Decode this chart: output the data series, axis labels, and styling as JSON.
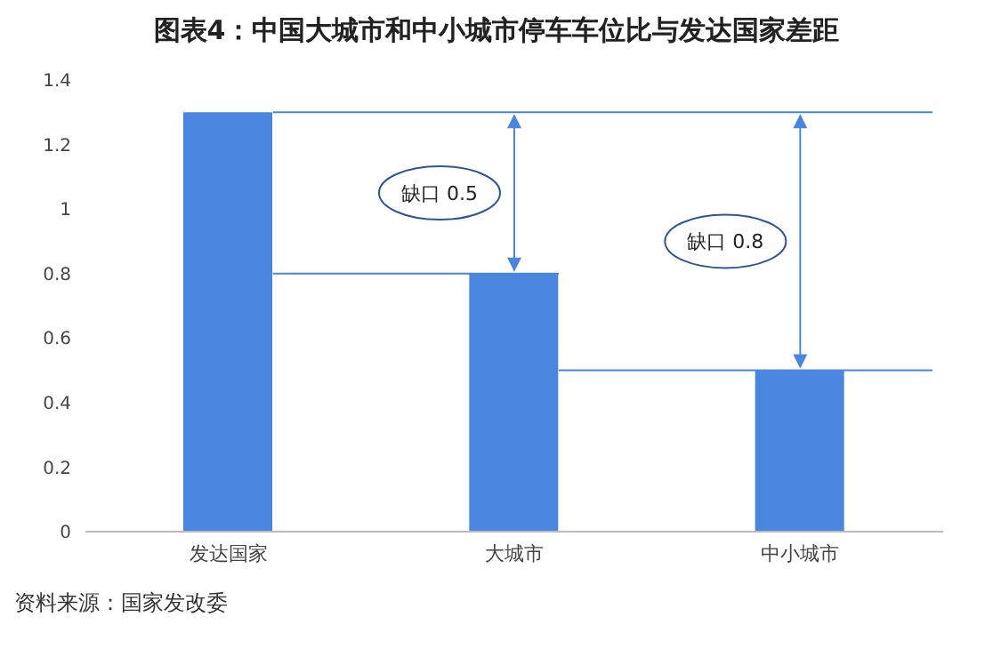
{
  "chart_data": {
    "type": "bar",
    "title": "图表4：中国大城市和中小城市停车车位比与发达国家差距",
    "categories": [
      "发达国家",
      "大城市",
      "中小城市"
    ],
    "values": [
      1.3,
      0.8,
      0.5
    ],
    "color": "#4a86e0",
    "ylim": [
      0,
      1.4
    ],
    "yticks": [
      0,
      0.2,
      0.4,
      0.6,
      0.8,
      1,
      1.2,
      1.4
    ],
    "grid": false,
    "ref_lines": [
      {
        "axis": "y",
        "value": 1.3,
        "color": "#4a86e0"
      },
      {
        "axis": "y",
        "value": 0.8,
        "color": "#4a86e0"
      },
      {
        "axis": "y",
        "value": 0.5,
        "color": "#4a86e0"
      }
    ],
    "annotations": [
      "缺口 0.5",
      "缺口 0.8",
      "资料来源：国家发改委"
    ]
  }
}
